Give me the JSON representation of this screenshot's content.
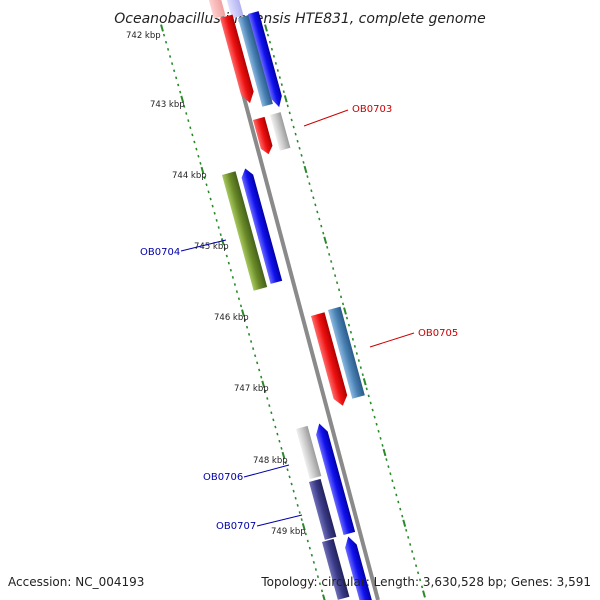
{
  "title": "Oceanobacillus iheyensis HTE831, complete genome",
  "footer": {
    "accession": "Accession: NC_004193",
    "topology": "Topology: circular; Length: 3,630,528 bp; Genes: 3,591"
  },
  "ticks": [
    "742 kbp",
    "743 kbp",
    "744 kbp",
    "745 kbp",
    "746 kbp",
    "747 kbp",
    "748 kbp",
    "749 kbp"
  ],
  "gene_labels": [
    {
      "id": "ob0703",
      "text": "OB0703",
      "color": "#cc0000"
    },
    {
      "id": "ob0704",
      "text": "OB0704",
      "color": "#0000aa"
    },
    {
      "id": "ob0705",
      "text": "OB0705",
      "color": "#cc0000"
    },
    {
      "id": "ob0706",
      "text": "OB0706",
      "color": "#0000aa"
    },
    {
      "id": "ob0707",
      "text": "OB0707",
      "color": "#0000aa"
    }
  ],
  "colors": {
    "backbone": "#8c8c8c",
    "tick_dots": "#2a8a2a",
    "red": "#ee1111",
    "blue": "#1111ee",
    "steel": "#4a82b4",
    "olive": "#6a8a28",
    "grey": "#c0c0c0",
    "navy": "#3a3a88"
  }
}
